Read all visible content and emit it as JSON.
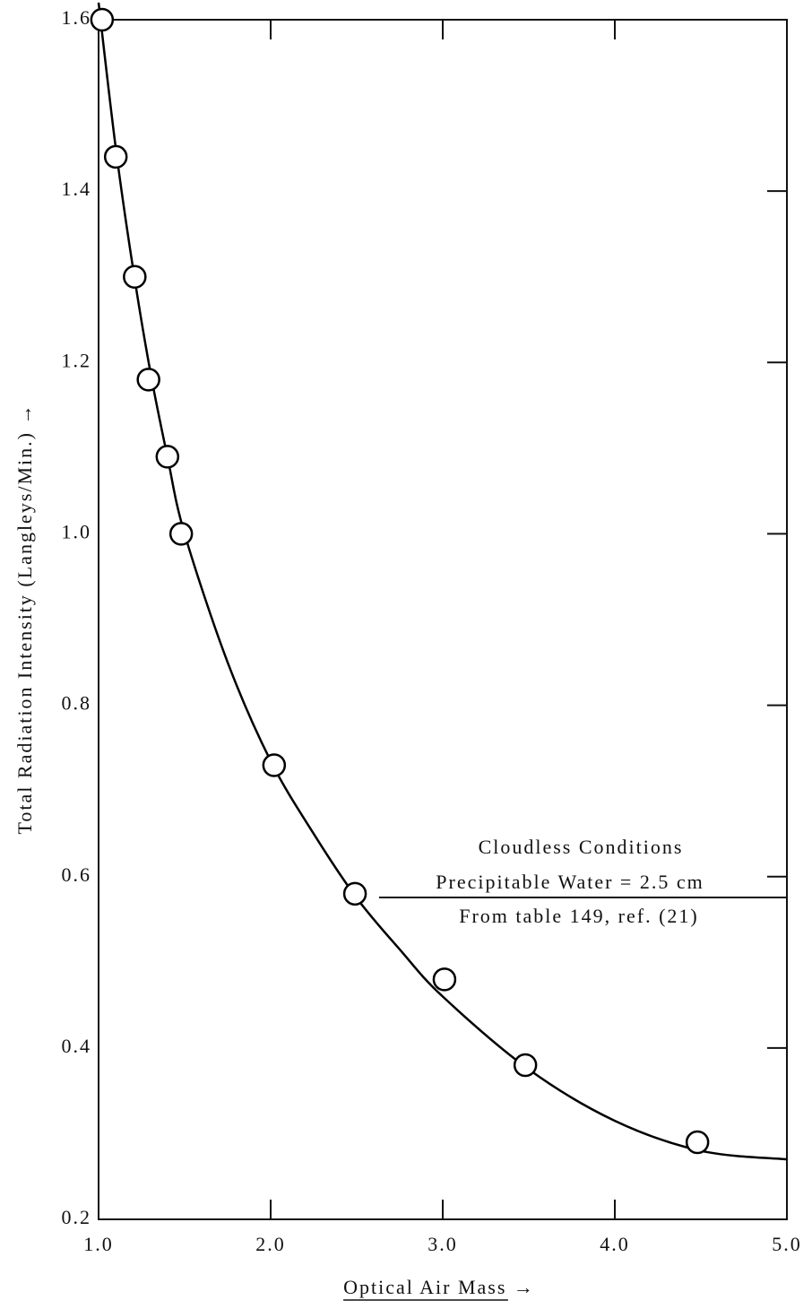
{
  "chart_data": {
    "type": "scatter",
    "xlabel": "Optical Air Mass →",
    "ylabel": "Total Radiation Intensity (Langleys/Min.) →",
    "xlim": [
      1.0,
      5.0
    ],
    "ylim": [
      0.2,
      1.6
    ],
    "xticks": [
      {
        "value": 1.0,
        "label": "1.0"
      },
      {
        "value": 2.0,
        "label": "2.0"
      },
      {
        "value": 3.0,
        "label": "3.0"
      },
      {
        "value": 4.0,
        "label": "4.0"
      },
      {
        "value": 5.0,
        "label": "5.0"
      }
    ],
    "yticks": [
      0.2,
      0.4,
      0.6,
      0.8,
      {
        "value": 1.0,
        "label": "1.0"
      },
      1.2,
      1.4,
      1.6
    ],
    "series": [
      {
        "marker": "circle",
        "color": "#000000",
        "x": [
          1.02,
          1.1,
          1.21,
          1.29,
          1.4,
          1.48,
          2.02,
          2.49,
          3.01,
          3.48,
          4.48
        ],
        "values": [
          1.6,
          1.44,
          1.3,
          1.18,
          1.09,
          1.0,
          0.73,
          0.58,
          0.48,
          0.38,
          0.29
        ]
      },
      {
        "marker": "none",
        "color": "#000000",
        "x": [
          1.0,
          1.1,
          1.2,
          1.3,
          1.4,
          1.5,
          1.75,
          2.0,
          2.25,
          2.5,
          2.75,
          3.0,
          3.5,
          4.0,
          4.5,
          5.0
        ],
        "values": [
          1.62,
          1.45,
          1.31,
          1.19,
          1.09,
          1.0,
          0.85,
          0.735,
          0.65,
          0.575,
          0.515,
          0.46,
          0.375,
          0.315,
          0.28,
          0.27
        ]
      }
    ],
    "annotations": [
      "Cloudless Conditions",
      "Precipitable Water = 2.5 cm",
      "From table 149, ref. (21)"
    ]
  }
}
